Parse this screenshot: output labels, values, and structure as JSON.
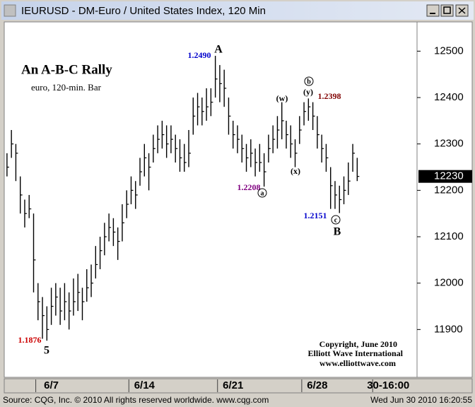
{
  "window": {
    "title": "IEURUSD - DM-Euro / United States Index, 120 Min"
  },
  "status": {
    "source": "Source: CQG, Inc. © 2010 All rights reserved worldwide. www.cqg.com",
    "time": "Wed Jun 30 2010 16:20:55"
  },
  "chart_data": {
    "type": "ohlc",
    "title": "An A-B-C Rally",
    "subtitle": "euro, 120-min. Bar",
    "color": "#000000",
    "high": [
      12280,
      12330,
      12300,
      12230,
      12180,
      12190,
      12150,
      12000,
      11970,
      11950,
      11990,
      12000,
      11990,
      12000,
      11980,
      12010,
      12020,
      11990,
      12030,
      12040,
      12080,
      12100,
      12130,
      12150,
      12140,
      12120,
      12170,
      12200,
      12230,
      12220,
      12270,
      12300,
      12280,
      12320,
      12340,
      12350,
      12340,
      12340,
      12320,
      12310,
      12300,
      12330,
      12400,
      12410,
      12400,
      12420,
      12420,
      12490,
      12470,
      12460,
      12400,
      12350,
      12340,
      12320,
      12300,
      12310,
      12290,
      12300,
      12280,
      12320,
      12340,
      12360,
      12390,
      12350,
      12340,
      12310,
      12360,
      12390,
      12398,
      12390,
      12360,
      12320,
      12300,
      12250,
      12220,
      12210,
      12230,
      12260,
      12300,
      12270
    ],
    "low": [
      12230,
      12270,
      12220,
      12150,
      12120,
      12140,
      11980,
      11920,
      11880,
      11876,
      11910,
      11930,
      11910,
      11920,
      11900,
      11930,
      11940,
      11920,
      11960,
      11970,
      12010,
      12030,
      12060,
      12090,
      12080,
      12050,
      12090,
      12140,
      12170,
      12160,
      12210,
      12230,
      12200,
      12260,
      12280,
      12290,
      12270,
      12280,
      12260,
      12240,
      12240,
      12250,
      12320,
      12340,
      12340,
      12350,
      12360,
      12400,
      12390,
      12380,
      12320,
      12290,
      12280,
      12260,
      12240,
      12250,
      12230,
      12240,
      12208,
      12260,
      12280,
      12290,
      12310,
      12290,
      12270,
      12250,
      12300,
      12340,
      12350,
      12330,
      12290,
      12260,
      12240,
      12160,
      12160,
      12151,
      12170,
      12190,
      12240,
      12220
    ],
    "close": [
      12250,
      12300,
      12280,
      12190,
      12150,
      12160,
      12050,
      11960,
      11930,
      11900,
      11950,
      11970,
      11940,
      11960,
      11940,
      11960,
      11980,
      11960,
      11990,
      12000,
      12040,
      12070,
      12100,
      12120,
      12110,
      12090,
      12130,
      12170,
      12200,
      12190,
      12240,
      12270,
      12250,
      12290,
      12310,
      12320,
      12300,
      12310,
      12290,
      12270,
      12260,
      12280,
      12360,
      12380,
      12370,
      12380,
      12390,
      12440,
      12430,
      12420,
      12360,
      12320,
      12310,
      12290,
      12270,
      12280,
      12260,
      12260,
      12240,
      12290,
      12310,
      12330,
      12350,
      12320,
      12300,
      12280,
      12330,
      12370,
      12380,
      12360,
      12320,
      12290,
      12270,
      12210,
      12190,
      12180,
      12200,
      12220,
      12280,
      12230
    ],
    "xlim": [
      -0.3,
      92.5
    ],
    "xticks": [
      {
        "value": 10,
        "label": "6/7"
      },
      {
        "value": 31,
        "label": "6/14"
      },
      {
        "value": 51,
        "label": "6/21"
      },
      {
        "value": 70,
        "label": "6/28"
      },
      {
        "value": 86,
        "label": "30-16:00"
      }
    ],
    "ylim": [
      11800,
      12560
    ],
    "yticks": [
      11900,
      12000,
      12100,
      12200,
      12300,
      12400,
      12500
    ],
    "last_price": 12230,
    "annotations": [
      {
        "text": "1.2490",
        "color": "#0000cc"
      },
      {
        "text": "A",
        "color": "#000000"
      },
      {
        "text": "1.2208",
        "color": "#800080"
      },
      {
        "text": "a",
        "color": "#000000"
      },
      {
        "text": "(w)",
        "color": "#000000"
      },
      {
        "text": "(x)",
        "color": "#000000"
      },
      {
        "text": "b",
        "color": "#000000"
      },
      {
        "text": "(y)",
        "color": "#000000"
      },
      {
        "text": "1.2398",
        "color": "#800000"
      },
      {
        "text": "1.2151",
        "color": "#0000cc"
      },
      {
        "text": "c",
        "color": "#000000"
      },
      {
        "text": "B",
        "color": "#000000"
      },
      {
        "text": "1.1876",
        "color": "#cc0000"
      },
      {
        "text": "5",
        "color": "#000000"
      }
    ],
    "copyright": [
      "Copyright, June 2010",
      "Elliott Wave International",
      "www.elliottwave.com"
    ]
  }
}
